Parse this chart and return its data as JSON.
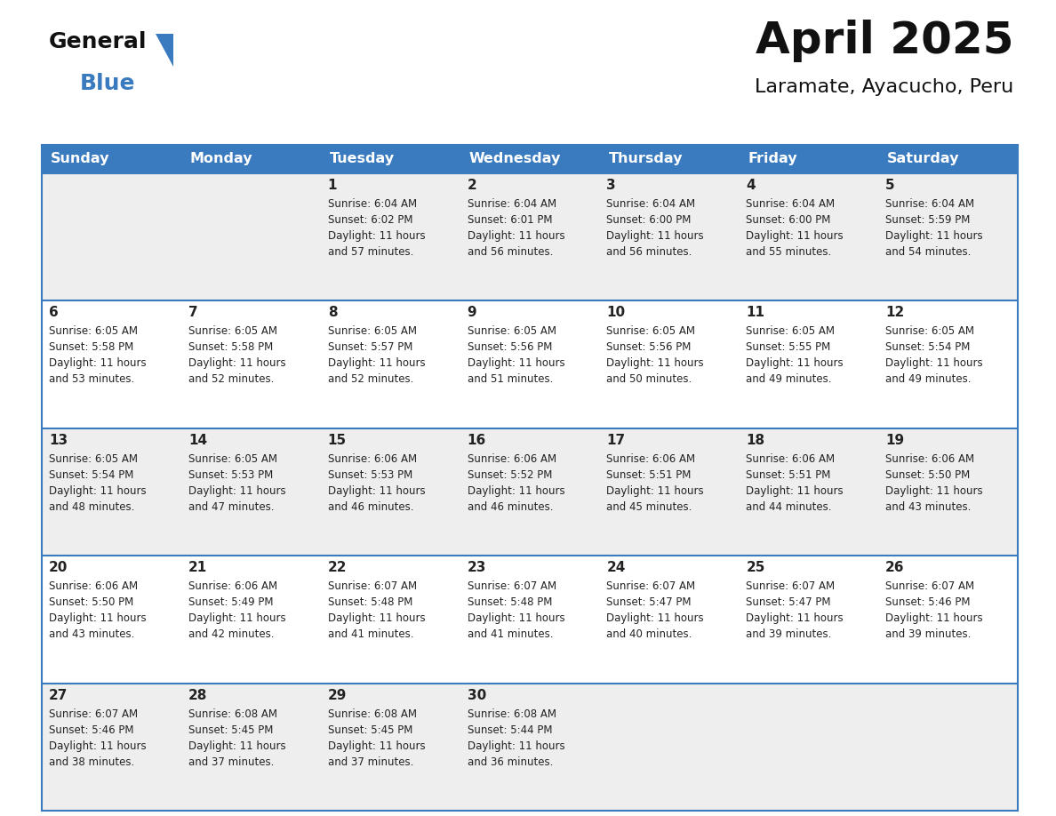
{
  "title": "April 2025",
  "subtitle": "Laramate, Ayacucho, Peru",
  "header_bg": "#3a7abf",
  "header_text_color": "#ffffff",
  "cell_bg_alt": "#eeeeee",
  "cell_bg_white": "#ffffff",
  "border_color": "#3a7abf",
  "text_color": "#222222",
  "logo_black": "#111111",
  "logo_blue": "#3a7abf",
  "day_headers": [
    "Sunday",
    "Monday",
    "Tuesday",
    "Wednesday",
    "Thursday",
    "Friday",
    "Saturday"
  ],
  "days": [
    {
      "date": 1,
      "col": 2,
      "row": 0,
      "sunrise": "6:04 AM",
      "sunset": "6:02 PM",
      "daylight_extra": "57 minutes"
    },
    {
      "date": 2,
      "col": 3,
      "row": 0,
      "sunrise": "6:04 AM",
      "sunset": "6:01 PM",
      "daylight_extra": "56 minutes"
    },
    {
      "date": 3,
      "col": 4,
      "row": 0,
      "sunrise": "6:04 AM",
      "sunset": "6:00 PM",
      "daylight_extra": "56 minutes"
    },
    {
      "date": 4,
      "col": 5,
      "row": 0,
      "sunrise": "6:04 AM",
      "sunset": "6:00 PM",
      "daylight_extra": "55 minutes"
    },
    {
      "date": 5,
      "col": 6,
      "row": 0,
      "sunrise": "6:04 AM",
      "sunset": "5:59 PM",
      "daylight_extra": "54 minutes"
    },
    {
      "date": 6,
      "col": 0,
      "row": 1,
      "sunrise": "6:05 AM",
      "sunset": "5:58 PM",
      "daylight_extra": "53 minutes"
    },
    {
      "date": 7,
      "col": 1,
      "row": 1,
      "sunrise": "6:05 AM",
      "sunset": "5:58 PM",
      "daylight_extra": "52 minutes"
    },
    {
      "date": 8,
      "col": 2,
      "row": 1,
      "sunrise": "6:05 AM",
      "sunset": "5:57 PM",
      "daylight_extra": "52 minutes"
    },
    {
      "date": 9,
      "col": 3,
      "row": 1,
      "sunrise": "6:05 AM",
      "sunset": "5:56 PM",
      "daylight_extra": "51 minutes"
    },
    {
      "date": 10,
      "col": 4,
      "row": 1,
      "sunrise": "6:05 AM",
      "sunset": "5:56 PM",
      "daylight_extra": "50 minutes"
    },
    {
      "date": 11,
      "col": 5,
      "row": 1,
      "sunrise": "6:05 AM",
      "sunset": "5:55 PM",
      "daylight_extra": "49 minutes"
    },
    {
      "date": 12,
      "col": 6,
      "row": 1,
      "sunrise": "6:05 AM",
      "sunset": "5:54 PM",
      "daylight_extra": "49 minutes"
    },
    {
      "date": 13,
      "col": 0,
      "row": 2,
      "sunrise": "6:05 AM",
      "sunset": "5:54 PM",
      "daylight_extra": "48 minutes"
    },
    {
      "date": 14,
      "col": 1,
      "row": 2,
      "sunrise": "6:05 AM",
      "sunset": "5:53 PM",
      "daylight_extra": "47 minutes"
    },
    {
      "date": 15,
      "col": 2,
      "row": 2,
      "sunrise": "6:06 AM",
      "sunset": "5:53 PM",
      "daylight_extra": "46 minutes"
    },
    {
      "date": 16,
      "col": 3,
      "row": 2,
      "sunrise": "6:06 AM",
      "sunset": "5:52 PM",
      "daylight_extra": "46 minutes"
    },
    {
      "date": 17,
      "col": 4,
      "row": 2,
      "sunrise": "6:06 AM",
      "sunset": "5:51 PM",
      "daylight_extra": "45 minutes"
    },
    {
      "date": 18,
      "col": 5,
      "row": 2,
      "sunrise": "6:06 AM",
      "sunset": "5:51 PM",
      "daylight_extra": "44 minutes"
    },
    {
      "date": 19,
      "col": 6,
      "row": 2,
      "sunrise": "6:06 AM",
      "sunset": "5:50 PM",
      "daylight_extra": "43 minutes"
    },
    {
      "date": 20,
      "col": 0,
      "row": 3,
      "sunrise": "6:06 AM",
      "sunset": "5:50 PM",
      "daylight_extra": "43 minutes"
    },
    {
      "date": 21,
      "col": 1,
      "row": 3,
      "sunrise": "6:06 AM",
      "sunset": "5:49 PM",
      "daylight_extra": "42 minutes"
    },
    {
      "date": 22,
      "col": 2,
      "row": 3,
      "sunrise": "6:07 AM",
      "sunset": "5:48 PM",
      "daylight_extra": "41 minutes"
    },
    {
      "date": 23,
      "col": 3,
      "row": 3,
      "sunrise": "6:07 AM",
      "sunset": "5:48 PM",
      "daylight_extra": "41 minutes"
    },
    {
      "date": 24,
      "col": 4,
      "row": 3,
      "sunrise": "6:07 AM",
      "sunset": "5:47 PM",
      "daylight_extra": "40 minutes"
    },
    {
      "date": 25,
      "col": 5,
      "row": 3,
      "sunrise": "6:07 AM",
      "sunset": "5:47 PM",
      "daylight_extra": "39 minutes"
    },
    {
      "date": 26,
      "col": 6,
      "row": 3,
      "sunrise": "6:07 AM",
      "sunset": "5:46 PM",
      "daylight_extra": "39 minutes"
    },
    {
      "date": 27,
      "col": 0,
      "row": 4,
      "sunrise": "6:07 AM",
      "sunset": "5:46 PM",
      "daylight_extra": "38 minutes"
    },
    {
      "date": 28,
      "col": 1,
      "row": 4,
      "sunrise": "6:08 AM",
      "sunset": "5:45 PM",
      "daylight_extra": "37 minutes"
    },
    {
      "date": 29,
      "col": 2,
      "row": 4,
      "sunrise": "6:08 AM",
      "sunset": "5:45 PM",
      "daylight_extra": "37 minutes"
    },
    {
      "date": 30,
      "col": 3,
      "row": 4,
      "sunrise": "6:08 AM",
      "sunset": "5:44 PM",
      "daylight_extra": "36 minutes"
    }
  ],
  "fig_width": 11.88,
  "fig_height": 9.18,
  "dpi": 100
}
